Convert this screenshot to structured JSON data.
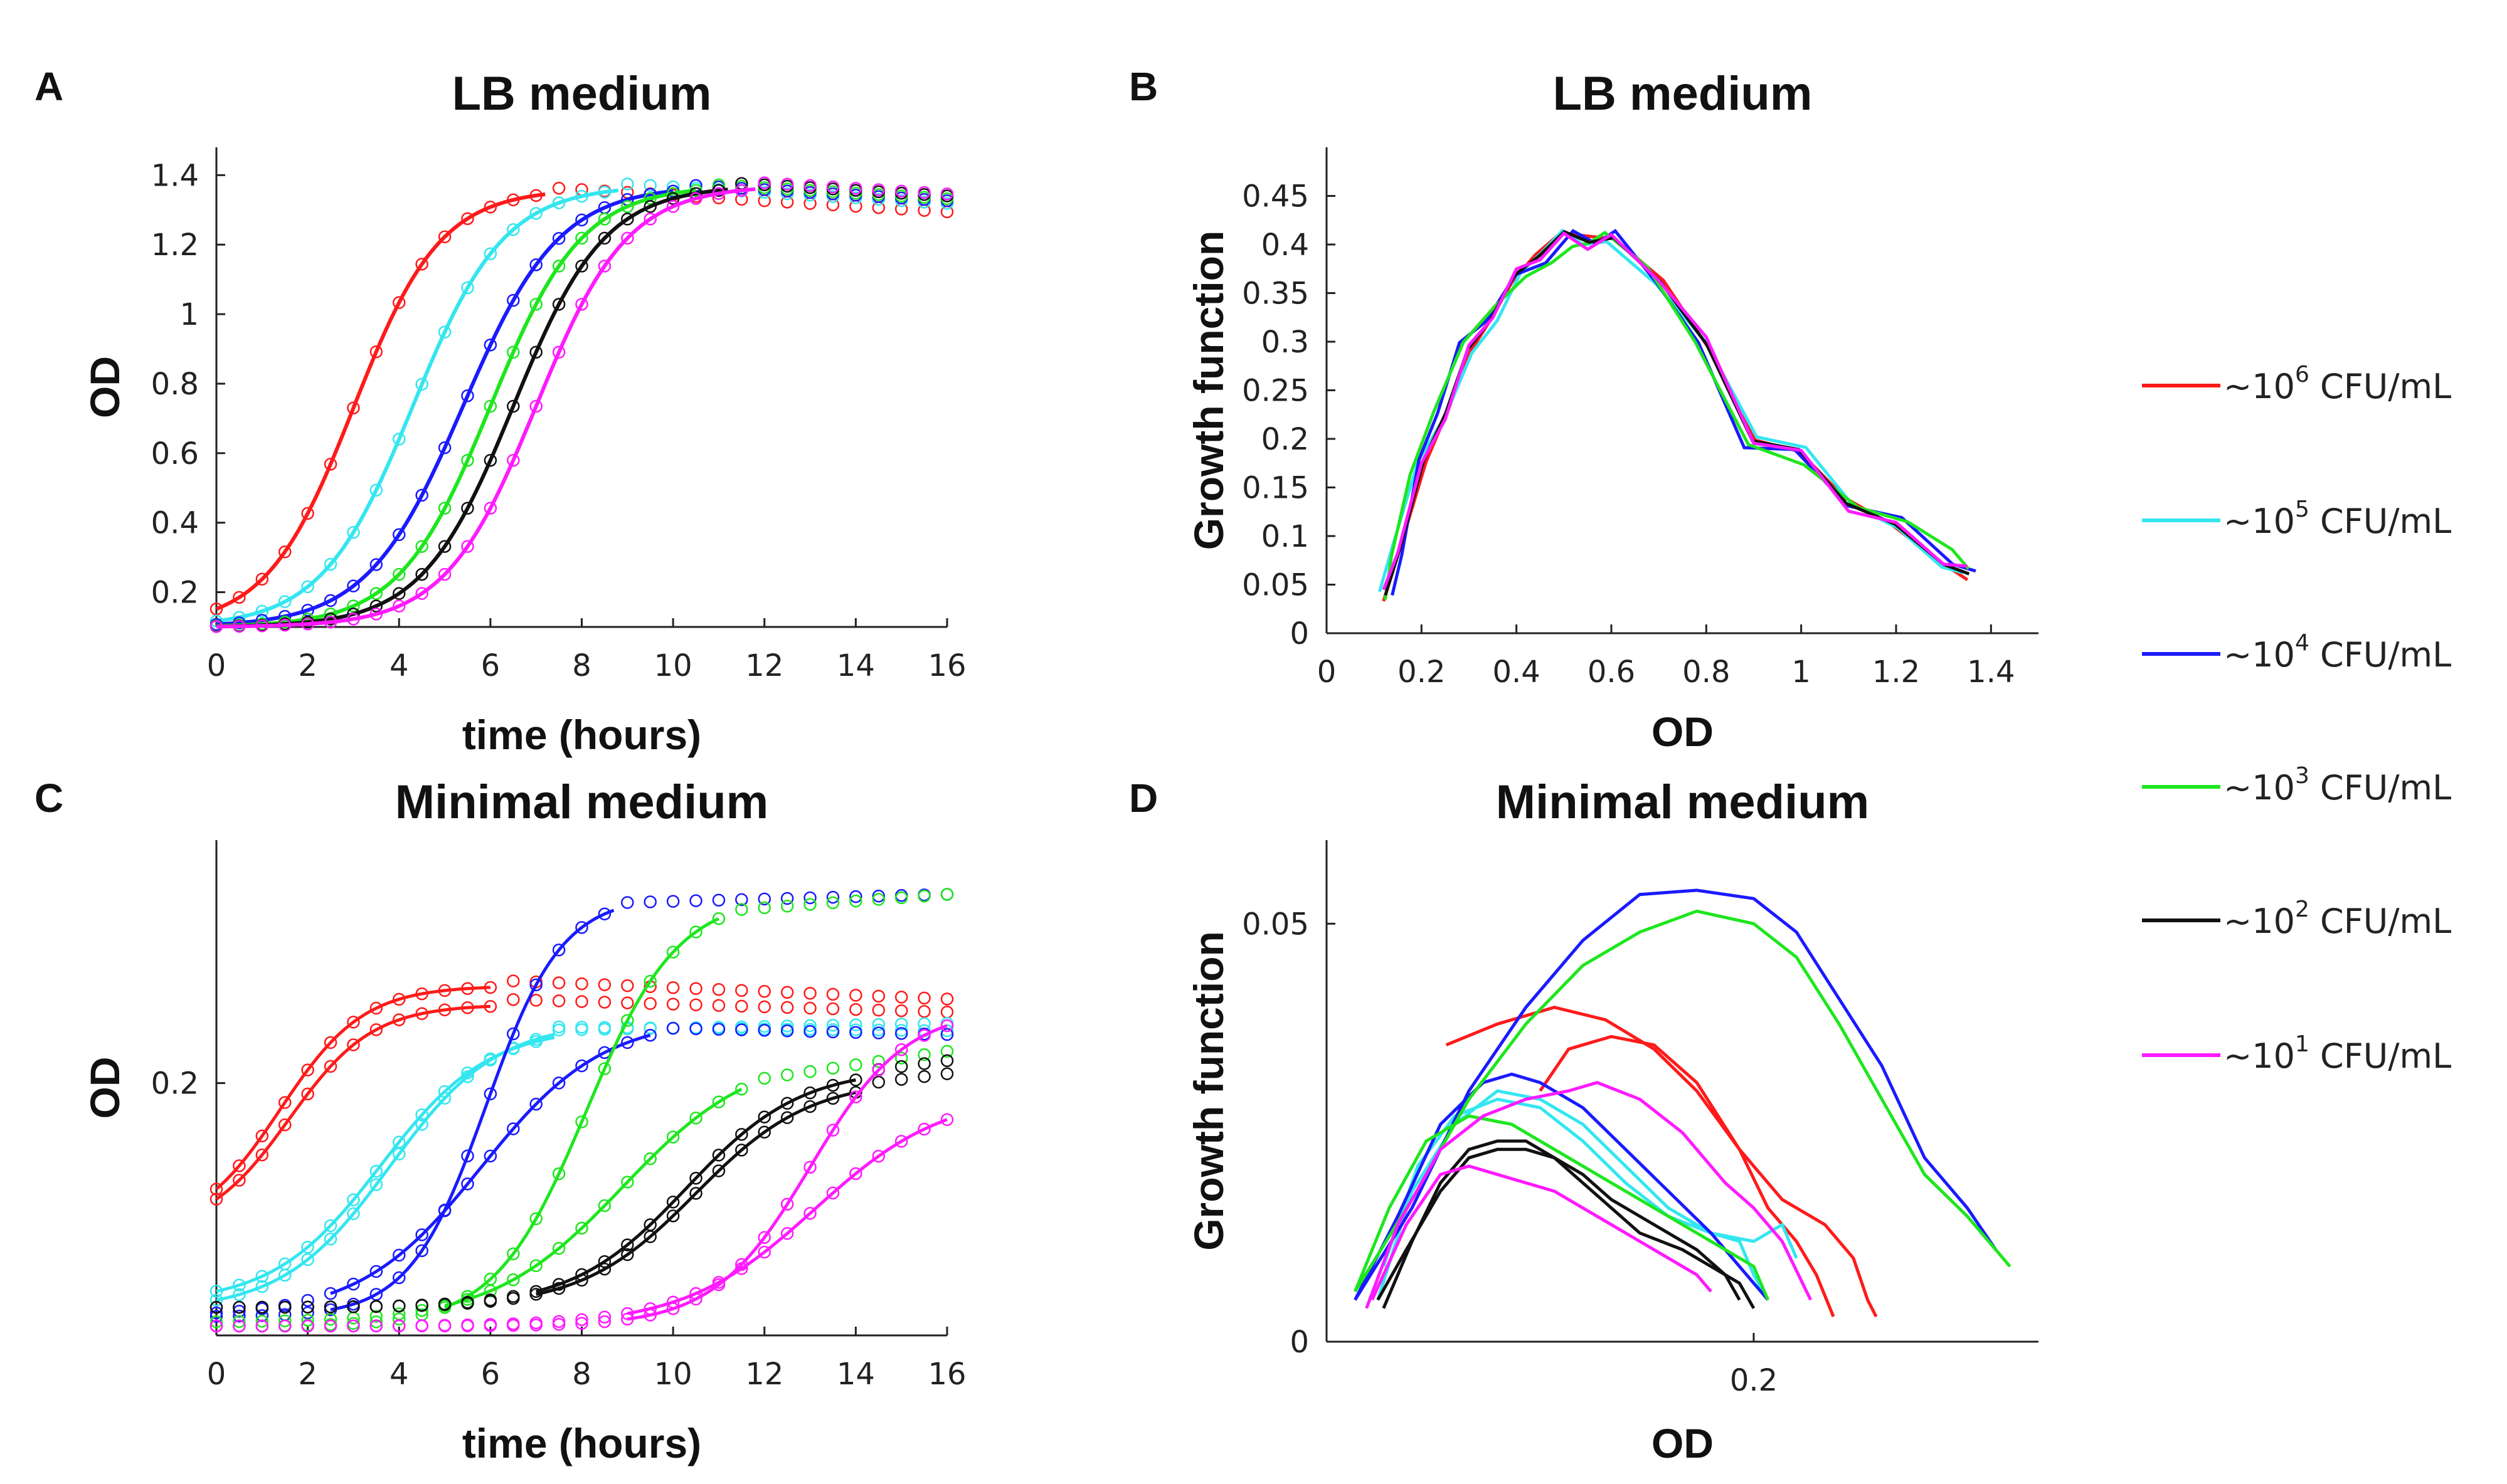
{
  "figure": {
    "legend": [
      {
        "prefix": "~10",
        "exp": "6",
        "suffix": " CFU/mL",
        "color": "#ff1a1a"
      },
      {
        "prefix": "~10",
        "exp": "5",
        "suffix": " CFU/mL",
        "color": "#33e6f0"
      },
      {
        "prefix": "~10",
        "exp": "4",
        "suffix": " CFU/mL",
        "color": "#1a1aff"
      },
      {
        "prefix": "~10",
        "exp": "3",
        "suffix": " CFU/mL",
        "color": "#1ee61e"
      },
      {
        "prefix": "~10",
        "exp": "2",
        "suffix": " CFU/mL",
        "color": "#111111"
      },
      {
        "prefix": "~10",
        "exp": "1",
        "suffix": " CFU/mL",
        "color": "#ff1aff"
      }
    ]
  },
  "chart_data": [
    {
      "panel": "A",
      "type": "line",
      "title": "LB medium",
      "xlabel": "time (hours)",
      "ylabel": "OD",
      "xlim": [
        0,
        16
      ],
      "ylim": [
        0.1,
        1.48
      ],
      "xticks": [
        0,
        2,
        4,
        6,
        8,
        10,
        12,
        14,
        16
      ],
      "xtick_labels": [
        "0",
        "2",
        "4",
        "6",
        "8",
        "10",
        "12",
        "14",
        "16"
      ],
      "yticks": [
        0.2,
        0.4,
        0.6,
        0.8,
        1.0,
        1.2,
        1.4
      ],
      "ytick_labels": [
        "0.2",
        "0.4",
        "0.6",
        "0.8",
        "1",
        "1.2",
        "1.4"
      ],
      "series": [
        {
          "name": "~10^6 CFU/mL",
          "color": "#ff1a1a",
          "midpoint": 3.0,
          "rate": 1.05,
          "fit_end": 7.2,
          "sat": 1.36
        },
        {
          "name": "~10^5 CFU/mL",
          "color": "#33e6f0",
          "midpoint": 4.3,
          "rate": 1.0,
          "fit_end": 8.8,
          "sat": 1.37
        },
        {
          "name": "~10^4 CFU/mL",
          "color": "#1a1aff",
          "midpoint": 5.4,
          "rate": 0.95,
          "fit_end": 10.0,
          "sat": 1.37
        },
        {
          "name": "~10^3 CFU/mL",
          "color": "#1ee61e",
          "midpoint": 6.0,
          "rate": 1.0,
          "fit_end": 10.5,
          "sat": 1.37
        },
        {
          "name": "~10^2 CFU/mL",
          "color": "#111111",
          "midpoint": 6.5,
          "rate": 1.0,
          "fit_end": 11.2,
          "sat": 1.37
        },
        {
          "name": "~10^1 CFU/mL",
          "color": "#ff1aff",
          "midpoint": 7.0,
          "rate": 1.0,
          "fit_end": 11.8,
          "sat": 1.37
        }
      ]
    },
    {
      "panel": "B",
      "type": "line",
      "title": "LB medium",
      "xlabel": "OD",
      "ylabel": "Growth function",
      "xlim": [
        0,
        1.5
      ],
      "ylim": [
        0,
        0.5
      ],
      "xticks": [
        0,
        0.2,
        0.4,
        0.6,
        0.8,
        1.0,
        1.2,
        1.4
      ],
      "xtick_labels": [
        "0",
        "0.2",
        "0.4",
        "0.6",
        "0.8",
        "1",
        "1.2",
        "1.4"
      ],
      "yticks": [
        0,
        0.05,
        0.1,
        0.15,
        0.2,
        0.25,
        0.3,
        0.35,
        0.4,
        0.45
      ],
      "ytick_labels": [
        "0",
        "0.05",
        "0.1",
        "0.15",
        "0.2",
        "0.25",
        "0.3",
        "0.35",
        "0.4",
        "0.45"
      ],
      "base_x": [
        0.12,
        0.15,
        0.2,
        0.25,
        0.3,
        0.35,
        0.4,
        0.45,
        0.5,
        0.55,
        0.6,
        0.7,
        0.8,
        0.9,
        1.0,
        1.1,
        1.2,
        1.3,
        1.35
      ],
      "base_y": [
        0.03,
        0.09,
        0.17,
        0.235,
        0.29,
        0.33,
        0.36,
        0.39,
        0.405,
        0.41,
        0.405,
        0.37,
        0.29,
        0.2,
        0.18,
        0.14,
        0.11,
        0.08,
        0.055
      ],
      "series": [
        {
          "name": "~10^6 CFU/mL",
          "color": "#ff1a1a",
          "dx": 0.01,
          "dy": 0.004
        },
        {
          "name": "~10^5 CFU/mL",
          "color": "#33e6f0",
          "dx": -0.01,
          "dy": 0.008
        },
        {
          "name": "~10^4 CFU/mL",
          "color": "#1a1aff",
          "dx": 0.02,
          "dy": 0.0
        },
        {
          "name": "~10^3 CFU/mL",
          "color": "#1ee61e",
          "dx": 0.025,
          "dy": 0.01
        },
        {
          "name": "~10^2 CFU/mL",
          "color": "#111111",
          "dx": -0.005,
          "dy": -0.004
        },
        {
          "name": "~10^1 CFU/mL",
          "color": "#ff1aff",
          "dx": 0.0,
          "dy": -0.006
        }
      ]
    },
    {
      "panel": "C",
      "type": "line",
      "title": "Minimal medium",
      "xlabel": "time (hours)",
      "ylabel": "OD",
      "xlim": [
        0,
        16
      ],
      "ylim": [
        0.065,
        0.33
      ],
      "xticks": [
        0,
        2,
        4,
        6,
        8,
        10,
        12,
        14,
        16
      ],
      "xtick_labels": [
        "0",
        "2",
        "4",
        "6",
        "8",
        "10",
        "12",
        "14",
        "16"
      ],
      "yticks": [
        0.2
      ],
      "ytick_labels": [
        "0.2"
      ],
      "series": [
        {
          "name": "~10^6 CFU/mL",
          "color": "#ff1a1a",
          "base": 0.12,
          "amp": 0.132,
          "midpoint": 1.4,
          "rate": 1.1,
          "fit_start": 0,
          "fit_end": 6.0,
          "late_end": 0.245
        },
        {
          "name": "~10^6 CFU/mL",
          "color": "#ff1a1a",
          "base": 0.12,
          "amp": 0.122,
          "midpoint": 1.6,
          "rate": 1.1,
          "fit_start": 0,
          "fit_end": 6.0,
          "late_end": 0.238
        },
        {
          "name": "~10^5 CFU/mL",
          "color": "#33e6f0",
          "base": 0.078,
          "amp": 0.155,
          "midpoint": 3.8,
          "rate": 0.85,
          "fit_start": 0,
          "fit_end": 7.4,
          "late_end": 0.228
        },
        {
          "name": "~10^5 CFU/mL",
          "color": "#33e6f0",
          "base": 0.082,
          "amp": 0.148,
          "midpoint": 3.6,
          "rate": 0.85,
          "fit_start": 0,
          "fit_end": 7.4,
          "late_end": 0.232
        },
        {
          "name": "~10^4 CFU/mL",
          "color": "#1a1aff",
          "base": 0.075,
          "amp": 0.225,
          "midpoint": 5.9,
          "rate": 1.2,
          "fit_start": 2.5,
          "fit_end": 8.7,
          "late_end": 0.301
        },
        {
          "name": "~10^4 CFU/mL",
          "color": "#1a1aff",
          "base": 0.075,
          "amp": 0.16,
          "midpoint": 5.8,
          "rate": 0.75,
          "fit_start": 2.5,
          "fit_end": 9.5,
          "late_end": 0.226
        },
        {
          "name": "~10^3 CFU/mL",
          "color": "#1ee61e",
          "base": 0.07,
          "amp": 0.23,
          "midpoint": 8.1,
          "rate": 1.0,
          "fit_start": 5.0,
          "fit_end": 11.0,
          "late_end": 0.301
        },
        {
          "name": "~10^3 CFU/mL",
          "color": "#1ee61e",
          "base": 0.072,
          "amp": 0.145,
          "midpoint": 8.9,
          "rate": 0.7,
          "fit_start": 5.0,
          "fit_end": 11.5,
          "late_end": 0.217
        },
        {
          "name": "~10^2 CFU/mL",
          "color": "#111111",
          "base": 0.08,
          "amp": 0.128,
          "midpoint": 10.3,
          "rate": 0.8,
          "fit_start": 7.0,
          "fit_end": 14.0,
          "late_end": 0.212
        },
        {
          "name": "~10^2 CFU/mL",
          "color": "#111111",
          "base": 0.08,
          "amp": 0.122,
          "midpoint": 10.5,
          "rate": 0.8,
          "fit_start": 7.0,
          "fit_end": 14.0,
          "late_end": 0.205
        },
        {
          "name": "~10^1 CFU/mL",
          "color": "#ff1aff",
          "base": 0.07,
          "amp": 0.17,
          "midpoint": 13.0,
          "rate": 0.95,
          "fit_start": 9.0,
          "fit_end": 16.0,
          "late_end": 0.238
        },
        {
          "name": "~10^1 CFU/mL",
          "color": "#ff1aff",
          "base": 0.07,
          "amp": 0.125,
          "midpoint": 13.1,
          "rate": 0.7,
          "fit_start": 9.0,
          "fit_end": 16.0,
          "late_end": 0.193
        }
      ]
    },
    {
      "panel": "D",
      "type": "line",
      "title": "Minimal medium",
      "xlabel": "OD",
      "ylabel": "Growth function",
      "xlim": [
        0.05,
        0.3
      ],
      "ylim": [
        0,
        0.06
      ],
      "xticks": [
        0.2
      ],
      "xtick_labels": [
        "0.2"
      ],
      "yticks": [
        0,
        0.05
      ],
      "ytick_labels": [
        "0",
        "0.05"
      ],
      "series": [
        {
          "name": "~10^6 CFU/mL",
          "color": "#ff1a1a",
          "x": [
            0.092,
            0.11,
            0.13,
            0.148,
            0.165,
            0.18,
            0.195,
            0.21,
            0.225,
            0.235,
            0.24,
            0.243
          ],
          "y": [
            0.0355,
            0.038,
            0.04,
            0.0385,
            0.035,
            0.03,
            0.023,
            0.017,
            0.014,
            0.01,
            0.005,
            0.003
          ]
        },
        {
          "name": "~10^6 CFU/mL",
          "color": "#ff1a1a",
          "x": [
            0.125,
            0.135,
            0.15,
            0.165,
            0.18,
            0.195,
            0.205,
            0.215,
            0.222,
            0.228
          ],
          "y": [
            0.03,
            0.035,
            0.0365,
            0.0355,
            0.031,
            0.023,
            0.016,
            0.012,
            0.008,
            0.003
          ]
        },
        {
          "name": "~10^5 CFU/mL",
          "color": "#33e6f0",
          "x": [
            0.068,
            0.08,
            0.095,
            0.11,
            0.125,
            0.14,
            0.155,
            0.17,
            0.185,
            0.2,
            0.21,
            0.215
          ],
          "y": [
            0.005,
            0.018,
            0.026,
            0.03,
            0.029,
            0.026,
            0.021,
            0.016,
            0.013,
            0.012,
            0.014,
            0.01
          ]
        },
        {
          "name": "~10^5 CFU/mL",
          "color": "#33e6f0",
          "x": [
            0.07,
            0.082,
            0.095,
            0.11,
            0.125,
            0.14,
            0.155,
            0.17,
            0.185,
            0.195,
            0.2,
            0.205
          ],
          "y": [
            0.009,
            0.021,
            0.027,
            0.029,
            0.028,
            0.024,
            0.019,
            0.015,
            0.013,
            0.012,
            0.008,
            0.005
          ]
        },
        {
          "name": "~10^4 CFU/mL",
          "color": "#1a1aff",
          "x": [
            0.06,
            0.08,
            0.1,
            0.12,
            0.14,
            0.16,
            0.18,
            0.2,
            0.215,
            0.23,
            0.245,
            0.26,
            0.275,
            0.285
          ],
          "y": [
            0.005,
            0.016,
            0.03,
            0.04,
            0.048,
            0.0535,
            0.054,
            0.053,
            0.049,
            0.041,
            0.033,
            0.022,
            0.016,
            0.011
          ]
        },
        {
          "name": "~10^4 CFU/mL",
          "color": "#1a1aff",
          "x": [
            0.06,
            0.075,
            0.09,
            0.105,
            0.115,
            0.125,
            0.14,
            0.155,
            0.17,
            0.185,
            0.195,
            0.205
          ],
          "y": [
            0.005,
            0.015,
            0.026,
            0.031,
            0.032,
            0.031,
            0.028,
            0.023,
            0.018,
            0.013,
            0.009,
            0.005
          ]
        },
        {
          "name": "~10^3 CFU/mL",
          "color": "#1ee61e",
          "x": [
            0.06,
            0.08,
            0.1,
            0.12,
            0.14,
            0.16,
            0.18,
            0.2,
            0.215,
            0.23,
            0.245,
            0.26,
            0.275,
            0.29
          ],
          "y": [
            0.006,
            0.017,
            0.029,
            0.038,
            0.045,
            0.049,
            0.0515,
            0.05,
            0.046,
            0.038,
            0.029,
            0.02,
            0.015,
            0.009
          ]
        },
        {
          "name": "~10^3 CFU/mL",
          "color": "#1ee61e",
          "x": [
            0.06,
            0.072,
            0.085,
            0.1,
            0.115,
            0.13,
            0.145,
            0.16,
            0.175,
            0.19,
            0.2,
            0.205
          ],
          "y": [
            0.006,
            0.016,
            0.024,
            0.027,
            0.026,
            0.023,
            0.02,
            0.017,
            0.014,
            0.011,
            0.009,
            0.005
          ]
        },
        {
          "name": "~10^2 CFU/mL",
          "color": "#111111",
          "x": [
            0.07,
            0.08,
            0.09,
            0.1,
            0.11,
            0.12,
            0.13,
            0.14,
            0.15,
            0.16,
            0.175,
            0.185,
            0.195,
            0.2
          ],
          "y": [
            0.004,
            0.012,
            0.019,
            0.023,
            0.024,
            0.024,
            0.022,
            0.019,
            0.016,
            0.013,
            0.011,
            0.009,
            0.007,
            0.004
          ]
        },
        {
          "name": "~10^2 CFU/mL",
          "color": "#111111",
          "x": [
            0.068,
            0.078,
            0.09,
            0.1,
            0.11,
            0.12,
            0.13,
            0.14,
            0.15,
            0.16,
            0.17,
            0.18,
            0.19,
            0.195
          ],
          "y": [
            0.005,
            0.011,
            0.018,
            0.022,
            0.023,
            0.023,
            0.022,
            0.02,
            0.017,
            0.015,
            0.013,
            0.011,
            0.008,
            0.005
          ]
        },
        {
          "name": "~10^1 CFU/mL",
          "color": "#ff1aff",
          "x": [
            0.064,
            0.075,
            0.09,
            0.105,
            0.12,
            0.135,
            0.145,
            0.16,
            0.175,
            0.19,
            0.2,
            0.21,
            0.22
          ],
          "y": [
            0.004,
            0.014,
            0.023,
            0.027,
            0.029,
            0.03,
            0.031,
            0.029,
            0.025,
            0.019,
            0.016,
            0.012,
            0.005
          ]
        },
        {
          "name": "~10^1 CFU/mL",
          "color": "#ff1aff",
          "x": [
            0.066,
            0.078,
            0.09,
            0.1,
            0.11,
            0.12,
            0.13,
            0.14,
            0.15,
            0.16,
            0.17,
            0.18,
            0.185
          ],
          "y": [
            0.005,
            0.014,
            0.02,
            0.021,
            0.02,
            0.019,
            0.018,
            0.016,
            0.014,
            0.012,
            0.01,
            0.008,
            0.006
          ]
        }
      ]
    }
  ]
}
